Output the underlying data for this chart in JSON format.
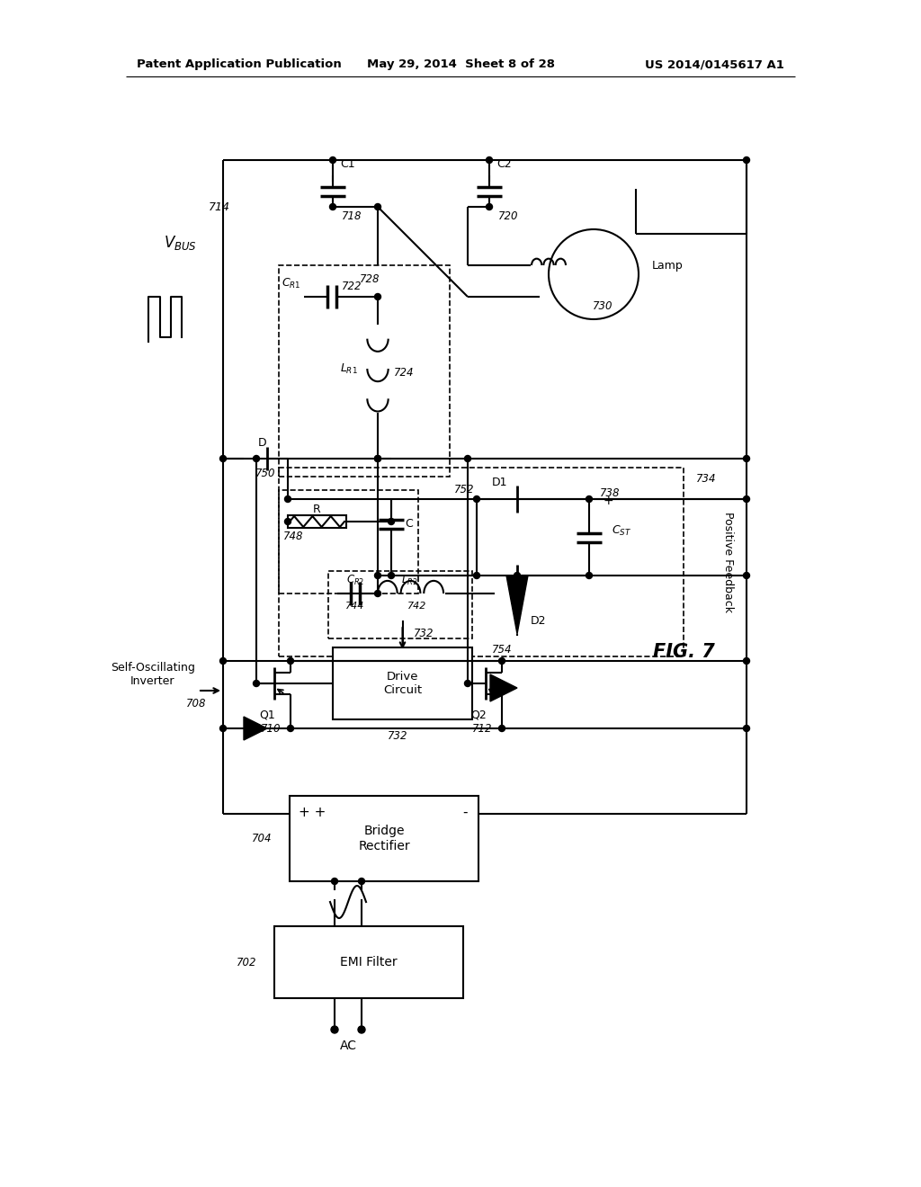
{
  "title_left": "Patent Application Publication",
  "title_center": "May 29, 2014  Sheet 8 of 28",
  "title_right": "US 2014/0145617 A1",
  "background_color": "#ffffff",
  "line_color": "#000000",
  "text_color": "#000000"
}
